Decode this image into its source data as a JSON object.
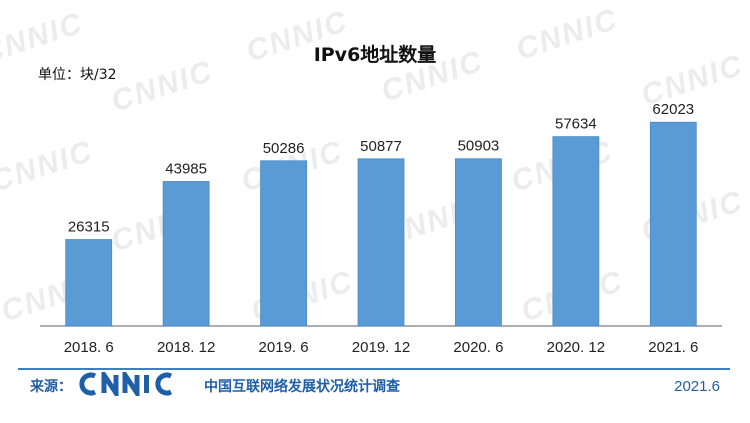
{
  "chart_data": {
    "type": "bar",
    "title": "IPv6地址数量",
    "unit_label": "单位：块/32",
    "categories": [
      "2018. 6",
      "2018. 12",
      "2019. 6",
      "2019. 12",
      "2020. 6",
      "2020. 12",
      "2021. 6"
    ],
    "values": [
      26315,
      43985,
      50286,
      50877,
      50903,
      57634,
      62023
    ],
    "data_labels": [
      "26315",
      "43985",
      "50286",
      "50877",
      "50903",
      "57634",
      "62023"
    ],
    "ylim": [
      0,
      70000
    ],
    "grid": false,
    "legend": "none",
    "bar_color": "#5b9bd5",
    "bar_edge_color": "#4a89c8",
    "axis_color": "#7f7f7f"
  },
  "footer": {
    "source_label": "来源：",
    "logo_text": "CNNIC",
    "org_name": "中国互联网络发展状况统计调查",
    "date": "2021.6",
    "color": "#1f5fa8"
  },
  "watermark": {
    "text": "CNNIC",
    "color": "#ececec"
  }
}
